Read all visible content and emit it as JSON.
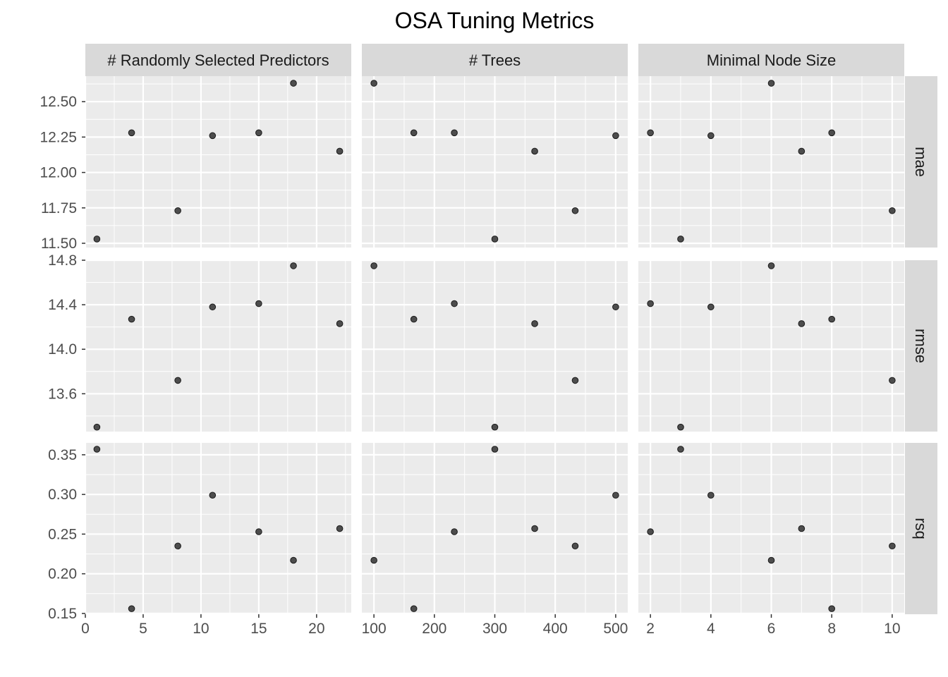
{
  "chart_data": {
    "type": "scatter",
    "title": "OSA Tuning Metrics",
    "facet_columns": [
      {
        "label": "# Randomly Selected Predictors",
        "x": [
          1,
          4,
          8,
          11,
          15,
          18,
          22
        ],
        "xlim": [
          0,
          23
        ],
        "xticks": [
          0,
          5,
          10,
          15,
          20
        ]
      },
      {
        "label": "# Trees",
        "x": [
          100,
          166,
          233,
          300,
          366,
          433,
          500
        ],
        "xlim": [
          80,
          520
        ],
        "xticks": [
          100,
          200,
          300,
          400,
          500
        ]
      },
      {
        "label": "Minimal Node Size",
        "x": [
          2,
          3,
          4,
          6,
          7,
          8,
          10
        ],
        "xlim": [
          1.6,
          10.4
        ],
        "xticks": [
          2,
          4,
          6,
          8,
          10
        ]
      }
    ],
    "facet_rows": [
      {
        "label": "mae",
        "ylim": [
          11.47,
          12.68
        ],
        "yticks": [
          11.5,
          11.75,
          12.0,
          12.25,
          12.5
        ],
        "tick_decimals": 2
      },
      {
        "label": "rmse",
        "ylim": [
          13.26,
          14.8
        ],
        "yticks": [
          13.6,
          14.0,
          14.4,
          14.8
        ],
        "tick_decimals": 1
      },
      {
        "label": "rsq",
        "ylim": [
          0.149,
          0.365
        ],
        "yticks": [
          0.15,
          0.2,
          0.25,
          0.3,
          0.35
        ],
        "tick_decimals": 2
      }
    ],
    "panels": [
      {
        "col": 0,
        "row": 0,
        "x": [
          1,
          4,
          8,
          11,
          15,
          18,
          22
        ],
        "y": [
          11.53,
          12.28,
          11.73,
          12.26,
          12.28,
          12.63,
          12.15
        ]
      },
      {
        "col": 1,
        "row": 0,
        "x": [
          100,
          166,
          233,
          300,
          366,
          433,
          500
        ],
        "y": [
          12.63,
          12.28,
          12.28,
          11.53,
          12.15,
          11.73,
          12.26
        ]
      },
      {
        "col": 2,
        "row": 0,
        "x": [
          2,
          3,
          4,
          6,
          7,
          8,
          10
        ],
        "y": [
          12.28,
          11.53,
          12.26,
          12.63,
          12.15,
          12.28,
          11.73
        ]
      },
      {
        "col": 0,
        "row": 1,
        "x": [
          1,
          4,
          8,
          11,
          15,
          18,
          22
        ],
        "y": [
          13.3,
          14.27,
          13.72,
          14.38,
          14.41,
          14.75,
          14.23
        ]
      },
      {
        "col": 1,
        "row": 1,
        "x": [
          100,
          166,
          233,
          300,
          366,
          433,
          500
        ],
        "y": [
          14.75,
          14.27,
          14.41,
          13.3,
          14.23,
          13.72,
          14.38
        ]
      },
      {
        "col": 2,
        "row": 1,
        "x": [
          2,
          3,
          4,
          6,
          7,
          8,
          10
        ],
        "y": [
          14.41,
          13.3,
          14.38,
          14.75,
          14.23,
          14.27,
          13.72
        ]
      },
      {
        "col": 0,
        "row": 2,
        "x": [
          1,
          4,
          8,
          11,
          15,
          18,
          22
        ],
        "y": [
          0.357,
          0.156,
          0.235,
          0.299,
          0.253,
          0.217,
          0.257
        ]
      },
      {
        "col": 1,
        "row": 2,
        "x": [
          100,
          166,
          233,
          300,
          366,
          433,
          500
        ],
        "y": [
          0.217,
          0.156,
          0.253,
          0.357,
          0.257,
          0.235,
          0.299
        ]
      },
      {
        "col": 2,
        "row": 2,
        "x": [
          2,
          3,
          4,
          6,
          7,
          8,
          10
        ],
        "y": [
          0.253,
          0.357,
          0.299,
          0.217,
          0.257,
          0.156,
          0.235
        ]
      }
    ],
    "colors": {
      "panel_background": "#ebebeb",
      "grid": "#ffffff",
      "strip_background": "#d9d9d9",
      "point_fill": "#4d4d4d",
      "point_stroke": "#1a1a1a",
      "tick_text": "#4d4d4d",
      "tick_mark": "#333333"
    },
    "grid": true,
    "legend": "none"
  }
}
